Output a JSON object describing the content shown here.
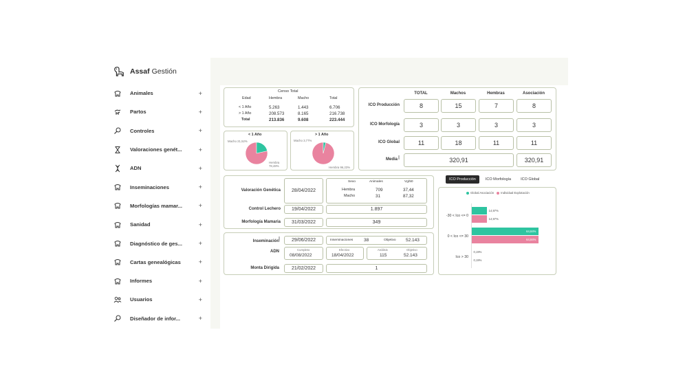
{
  "brand": {
    "name_bold": "Assaf",
    "name_regular": "Gestión"
  },
  "sidebar": {
    "items": [
      {
        "label": "Animales",
        "icon": "sheep-icon"
      },
      {
        "label": "Partos",
        "icon": "birth-icon"
      },
      {
        "label": "Controles",
        "icon": "magnifier-icon"
      },
      {
        "label": "Valoraciones genét...",
        "icon": "hourglass-icon"
      },
      {
        "label": "ADN",
        "icon": "dna-icon"
      },
      {
        "label": "Inseminaciones",
        "icon": "sheep-icon"
      },
      {
        "label": "Morfologías mamar...",
        "icon": "sheep-icon"
      },
      {
        "label": "Sanidad",
        "icon": "sheep-icon"
      },
      {
        "label": "Diagnóstico de ges...",
        "icon": "sheep-icon"
      },
      {
        "label": "Cartas genealógicas",
        "icon": "sheep-icon"
      },
      {
        "label": "Informes",
        "icon": "sheep-icon"
      },
      {
        "label": "Usuarios",
        "icon": "users-icon"
      },
      {
        "label": "Diseñador de infor...",
        "icon": "magnifier-icon"
      }
    ],
    "plus": "+"
  },
  "censo": {
    "title": "Censo Total",
    "headers": [
      "Edad",
      "Hembra",
      "Macho",
      "Total"
    ],
    "rows": [
      [
        "< 1 Año",
        "5.263",
        "1.443",
        "6.706"
      ],
      [
        "> 1 Año",
        "208.573",
        "8.165",
        "216.738"
      ],
      [
        "Total",
        "213.836",
        "9.608",
        "223.444"
      ]
    ]
  },
  "pie_lt1": {
    "title": "< 1 Año",
    "macho_label": "Macho 21,52%",
    "hembra_label": "Hembra 78,48%",
    "macho_pct": 21.52,
    "hembra_pct": 78.48
  },
  "pie_gt1": {
    "title": "> 1 Año",
    "macho_label": "Macho 3,77%",
    "hembra_label": "Hembra 96,23%",
    "macho_pct": 3.77,
    "hembra_pct": 96.23
  },
  "ico": {
    "headers": [
      "TOTAL",
      "Machos",
      "Hembras",
      "Asociación"
    ],
    "rows": [
      {
        "label": "ICO Producción",
        "values": [
          "8",
          "15",
          "7",
          "8"
        ]
      },
      {
        "label": "ICO Morfología",
        "values": [
          "3",
          "3",
          "3",
          "3"
        ]
      },
      {
        "label": "ICO Global",
        "values": [
          "11",
          "18",
          "11",
          "11"
        ]
      }
    ],
    "media_label": "Media",
    "media_value": "320,91",
    "media_asociacion": "320,91"
  },
  "valoracion": {
    "label": "Valoración Genética",
    "date": "28/04/2022",
    "headers": [
      "Sexo",
      "Animales",
      "Vg/50"
    ],
    "rows": [
      [
        "Hembra",
        "709",
        "37,44"
      ],
      [
        "Macho",
        "31",
        "87,32"
      ]
    ]
  },
  "control": {
    "label": "Control Lechero",
    "date": "19/04/2022",
    "value": "1.897"
  },
  "morfologia": {
    "label": "Morfología Mamaria",
    "date": "31/03/2022",
    "value": "349"
  },
  "inseminacion": {
    "label": "Inseminación",
    "date": "29/06/2022",
    "insem_label": "Inseminaciones",
    "insem_value": "38",
    "objetivo_label": "Objetivo",
    "objetivo_value": "52.143"
  },
  "adn": {
    "label": "ADN",
    "cumpleto_label": "Cumpleto",
    "cumpleto_date": "08/08/2022",
    "efectivo_label": "Efectivo",
    "efectivo_date": "18/04/2022",
    "analisis_label": "Análisis",
    "analisis_value": "115",
    "objetivo_label": "Objetivo",
    "objetivo_value": "52.143"
  },
  "monta": {
    "label": "Monta Dirigida",
    "date": "21/02/2022",
    "value": "1"
  },
  "tabs": [
    "ICO Producción",
    "ICO Morfología",
    "ICO Global"
  ],
  "chart_data": {
    "type": "bar",
    "orientation": "horizontal",
    "categories": [
      "-30 < Ico <= 0",
      "0 < Ico <= 30",
      "Ico > 30"
    ],
    "series": [
      {
        "name": "Global Asociación",
        "color": "#2ec4a0",
        "values": [
          14.97,
          64.84,
          0.19
        ],
        "labels": [
          "14,97%",
          "64,84%",
          "0,19%"
        ]
      },
      {
        "name": "Individual Explotación",
        "color": "#e9839f",
        "values": [
          14.97,
          64.84,
          0.19
        ],
        "labels": [
          "14,97%",
          "64,84%",
          "0,19%"
        ]
      }
    ],
    "legend_position": "top",
    "xlim": [
      0,
      70
    ]
  },
  "colors": {
    "accent_green": "#2ec4a0",
    "accent_pink": "#e9839f",
    "border": "#c6cdb7"
  }
}
